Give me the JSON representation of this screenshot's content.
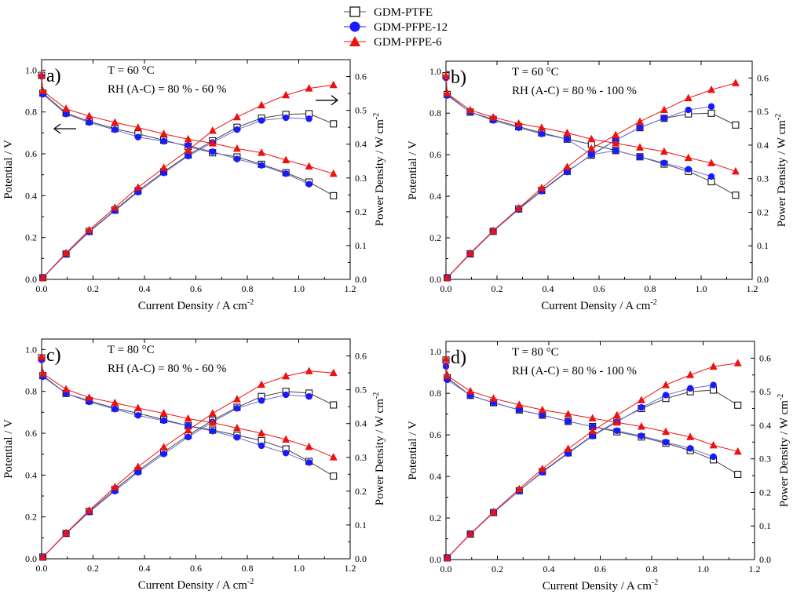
{
  "legend": {
    "entries": [
      {
        "name": "GDM-PTFE",
        "marker": "square-open",
        "color": "#000000"
      },
      {
        "name": "GDM-PFPE-12",
        "marker": "circle",
        "color": "#1a1aff"
      },
      {
        "name": "GDM-PFPE-6",
        "marker": "triangle",
        "color": "#ee1111"
      }
    ]
  },
  "colors": {
    "ptfe": "#000000",
    "pfpe12": "#1a1aff",
    "pfpe6": "#ee1111",
    "curve_line": "#6b6bd6"
  },
  "chart_data": [
    {
      "type": "line",
      "panel_label": "a)",
      "annotation_temp": "T = 60 °C",
      "annotation_rh": "RH (A-C) = 80 % - 60 %",
      "xlabel": "Current Density / A cm",
      "xlabel_sup": "-2",
      "ylabel": "Potential / V",
      "y2label": "Power Density / W cm",
      "y2label_sup": "-2",
      "xlim": [
        0,
        1.2
      ],
      "ylim": [
        0,
        1.05
      ],
      "y2lim": [
        0,
        0.65
      ],
      "xticks": [
        "0.0",
        "0.2",
        "0.4",
        "0.6",
        "0.8",
        "1.0",
        "1.2"
      ],
      "yticks": [
        "0.0",
        "0.2",
        "0.4",
        "0.6",
        "0.8",
        "1.0"
      ],
      "y2ticks": [
        "0.0",
        "0.1",
        "0.2",
        "0.3",
        "0.4",
        "0.5",
        "0.6"
      ],
      "arrows": true,
      "x": [
        0.005,
        0.095,
        0.185,
        0.285,
        0.375,
        0.475,
        0.57,
        0.665,
        0.76,
        0.855,
        0.95,
        1.04,
        1.135
      ],
      "series": [
        {
          "name": "GDM-PTFE",
          "potential": [
            0.975,
            0.89,
            0.795,
            0.755,
            0.72,
            0.695,
            0.665,
            0.635,
            0.605,
            0.585,
            0.55,
            0.51,
            0.465,
            0.4
          ],
          "power": [
            0.005,
            0.075,
            0.142,
            0.205,
            0.262,
            0.318,
            0.368,
            0.41,
            0.45,
            0.477,
            0.488,
            0.49,
            0.46
          ]
        },
        {
          "name": "GDM-PFPE-12",
          "potential": [
            0.97,
            0.885,
            0.79,
            0.75,
            0.715,
            0.68,
            0.66,
            0.64,
            0.61,
            0.575,
            0.545,
            0.505,
            0.455
          ],
          "power": [
            0.005,
            0.075,
            0.14,
            0.203,
            0.258,
            0.315,
            0.365,
            0.405,
            0.443,
            0.47,
            0.478,
            0.475
          ]
        },
        {
          "name": "GDM-PFPE-6",
          "potential": [
            0.975,
            0.9,
            0.815,
            0.78,
            0.75,
            0.725,
            0.695,
            0.67,
            0.65,
            0.625,
            0.605,
            0.57,
            0.54,
            0.505
          ],
          "power": [
            0.005,
            0.078,
            0.146,
            0.212,
            0.272,
            0.33,
            0.382,
            0.44,
            0.48,
            0.515,
            0.545,
            0.565,
            0.575
          ]
        }
      ]
    },
    {
      "type": "line",
      "panel_label": "b)",
      "annotation_temp": "T = 60 °C",
      "annotation_rh": "RH (A-C) = 80 % - 100 %",
      "xlabel": "Current Density / A cm",
      "xlabel_sup": "-2",
      "ylabel": "Potential / V",
      "y2label": "Power Density / W cm",
      "y2label_sup": "-2",
      "xlim": [
        0,
        1.2
      ],
      "ylim": [
        0,
        1.05
      ],
      "y2lim": [
        0,
        0.65
      ],
      "xticks": [
        "0.0",
        "0.2",
        "0.4",
        "0.6",
        "0.8",
        "1.0",
        "1.2"
      ],
      "yticks": [
        "0.0",
        "0.2",
        "0.4",
        "0.6",
        "0.8",
        "1.0"
      ],
      "y2ticks": [
        "0.0",
        "0.1",
        "0.2",
        "0.3",
        "0.4",
        "0.5",
        "0.6"
      ],
      "arrows": false,
      "x": [
        0.005,
        0.095,
        0.185,
        0.285,
        0.375,
        0.475,
        0.57,
        0.665,
        0.76,
        0.855,
        0.95,
        1.04,
        1.135
      ],
      "series": [
        {
          "name": "GDM-PTFE",
          "potential": [
            0.98,
            0.89,
            0.805,
            0.77,
            0.735,
            0.705,
            0.675,
            0.65,
            0.62,
            0.59,
            0.555,
            0.52,
            0.47,
            0.405
          ],
          "power": [
            0.005,
            0.076,
            0.143,
            0.21,
            0.265,
            0.322,
            0.37,
            0.415,
            0.452,
            0.48,
            0.493,
            0.495,
            0.46
          ]
        },
        {
          "name": "GDM-PFPE-12",
          "potential": [
            0.97,
            0.885,
            0.805,
            0.765,
            0.73,
            0.7,
            0.675,
            0.6,
            0.62,
            0.59,
            0.56,
            0.53,
            0.495
          ],
          "power": [
            0.005,
            0.076,
            0.143,
            0.208,
            0.263,
            0.32,
            0.372,
            0.415,
            0.452,
            0.48,
            0.505,
            0.515
          ]
        },
        {
          "name": "GDM-PFPE-6",
          "potential": [
            0.98,
            0.895,
            0.815,
            0.78,
            0.75,
            0.73,
            0.705,
            0.675,
            0.655,
            0.635,
            0.615,
            0.585,
            0.56,
            0.52
          ],
          "power": [
            0.005,
            0.078,
            0.145,
            0.212,
            0.272,
            0.335,
            0.39,
            0.43,
            0.47,
            0.505,
            0.54,
            0.565,
            0.585
          ]
        }
      ]
    },
    {
      "type": "line",
      "panel_label": "c)",
      "annotation_temp": "T = 80 °C",
      "annotation_rh": "RH (A-C) = 80 % - 60 %",
      "xlabel": "Current Density / A cm",
      "xlabel_sup": "-2",
      "ylabel": "Potential / V",
      "y2label": "Power Density / W cm",
      "y2label_sup": "-2",
      "xlim": [
        0,
        1.2
      ],
      "ylim": [
        0,
        1.05
      ],
      "y2lim": [
        0,
        0.65
      ],
      "xticks": [
        "0.0",
        "0.2",
        "0.4",
        "0.6",
        "0.8",
        "1.0",
        "1.2"
      ],
      "yticks": [
        "0.0",
        "0.2",
        "0.4",
        "0.6",
        "0.8",
        "1.0"
      ],
      "y2ticks": [
        "0.0",
        "0.1",
        "0.2",
        "0.3",
        "0.4",
        "0.5",
        "0.6"
      ],
      "arrows": false,
      "x": [
        0.005,
        0.095,
        0.185,
        0.285,
        0.375,
        0.475,
        0.57,
        0.665,
        0.76,
        0.855,
        0.95,
        1.04,
        1.135
      ],
      "series": [
        {
          "name": "GDM-PTFE",
          "potential": [
            0.96,
            0.875,
            0.79,
            0.755,
            0.72,
            0.695,
            0.665,
            0.635,
            0.615,
            0.59,
            0.565,
            0.525,
            0.465,
            0.395
          ],
          "power": [
            0.005,
            0.075,
            0.14,
            0.205,
            0.26,
            0.316,
            0.365,
            0.41,
            0.448,
            0.48,
            0.495,
            0.49,
            0.455
          ]
        },
        {
          "name": "GDM-PFPE-12",
          "potential": [
            0.95,
            0.87,
            0.79,
            0.75,
            0.715,
            0.685,
            0.66,
            0.635,
            0.61,
            0.58,
            0.54,
            0.505,
            0.46
          ],
          "power": [
            0.005,
            0.074,
            0.138,
            0.2,
            0.256,
            0.31,
            0.36,
            0.405,
            0.445,
            0.468,
            0.485,
            0.48
          ]
        },
        {
          "name": "GDM-PFPE-6",
          "potential": [
            0.965,
            0.885,
            0.81,
            0.77,
            0.745,
            0.72,
            0.695,
            0.67,
            0.65,
            0.625,
            0.6,
            0.57,
            0.535,
            0.485
          ],
          "power": [
            0.005,
            0.076,
            0.143,
            0.212,
            0.272,
            0.33,
            0.38,
            0.43,
            0.472,
            0.515,
            0.54,
            0.555,
            0.55
          ]
        }
      ]
    },
    {
      "type": "line",
      "panel_label": "d)",
      "annotation_temp": "T = 80 °C",
      "annotation_rh": "RH (A-C) = 80 % - 100 %",
      "xlabel": "Current Density / A cm",
      "xlabel_sup": "-2",
      "ylabel": "Potential / V",
      "y2label": "Power Density / W cm",
      "y2label_sup": "-2",
      "xlim": [
        0,
        1.2
      ],
      "ylim": [
        0,
        1.05
      ],
      "y2lim": [
        0,
        0.65
      ],
      "xticks": [
        "0.0",
        "0.2",
        "0.4",
        "0.6",
        "0.8",
        "1.0",
        "1.2"
      ],
      "yticks": [
        "0.0",
        "0.2",
        "0.4",
        "0.6",
        "0.8",
        "1.0"
      ],
      "y2ticks": [
        "0.0",
        "0.1",
        "0.2",
        "0.3",
        "0.4",
        "0.5",
        "0.6"
      ],
      "arrows": false,
      "x": [
        0.005,
        0.095,
        0.185,
        0.285,
        0.375,
        0.475,
        0.57,
        0.665,
        0.76,
        0.855,
        0.95,
        1.04,
        1.135
      ],
      "series": [
        {
          "name": "GDM-PTFE",
          "potential": [
            0.96,
            0.875,
            0.79,
            0.755,
            0.72,
            0.695,
            0.665,
            0.64,
            0.615,
            0.59,
            0.56,
            0.525,
            0.48,
            0.41
          ],
          "power": [
            0.005,
            0.076,
            0.14,
            0.205,
            0.262,
            0.318,
            0.37,
            0.412,
            0.45,
            0.48,
            0.5,
            0.505,
            0.46
          ]
        },
        {
          "name": "GDM-PFPE-12",
          "potential": [
            0.93,
            0.865,
            0.79,
            0.755,
            0.72,
            0.695,
            0.665,
            0.64,
            0.62,
            0.595,
            0.565,
            0.535,
            0.495
          ],
          "power": [
            0.005,
            0.076,
            0.14,
            0.205,
            0.26,
            0.316,
            0.368,
            0.41,
            0.453,
            0.49,
            0.51,
            0.52
          ]
        },
        {
          "name": "GDM-PFPE-6",
          "potential": [
            0.965,
            0.885,
            0.81,
            0.775,
            0.745,
            0.72,
            0.7,
            0.68,
            0.66,
            0.64,
            0.615,
            0.59,
            0.55,
            0.52
          ],
          "power": [
            0.005,
            0.077,
            0.142,
            0.21,
            0.27,
            0.33,
            0.383,
            0.43,
            0.475,
            0.52,
            0.55,
            0.575,
            0.585
          ]
        }
      ]
    }
  ]
}
